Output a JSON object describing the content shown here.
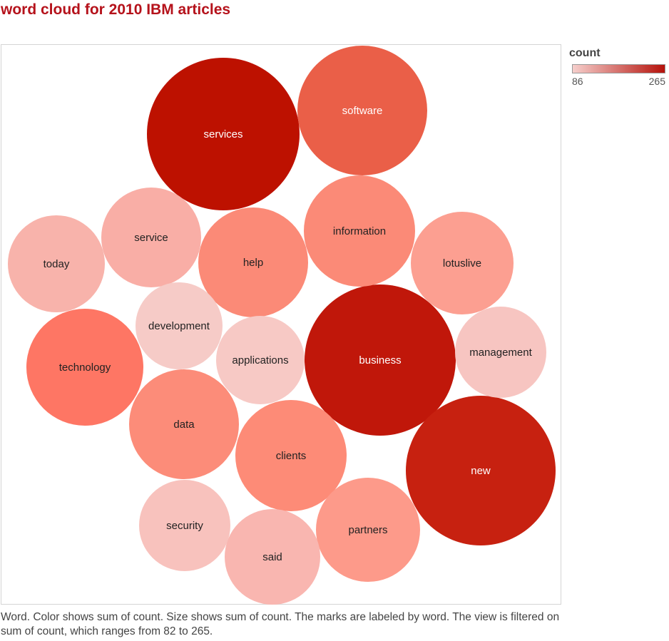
{
  "title": "word cloud for 2010 IBM articles",
  "legend": {
    "title": "count",
    "min_label": "86",
    "max_label": "265",
    "color_low": "#f6cfcc",
    "color_high": "#b5120b"
  },
  "caption": "Word.  Color shows sum of count.  Size shows sum of count.  The marks are labeled by word. The view is filtered on sum of count, which ranges from 82 to 265.",
  "chart_data": {
    "type": "bubble",
    "measure": "count",
    "words": [
      {
        "word": "services",
        "count": 265,
        "color": "#bd1100"
      },
      {
        "word": "software",
        "count": 190,
        "color": "#ea5f48"
      },
      {
        "word": "business",
        "count": 258,
        "color": "#c0170a"
      },
      {
        "word": "new",
        "count": 250,
        "color": "#c72110"
      },
      {
        "word": "information",
        "count": 140,
        "color": "#fb8a77"
      },
      {
        "word": "help",
        "count": 135,
        "color": "#fb8a77"
      },
      {
        "word": "technology",
        "count": 155,
        "color": "#fe7664"
      },
      {
        "word": "data",
        "count": 135,
        "color": "#fc8c79"
      },
      {
        "word": "clients",
        "count": 135,
        "color": "#fd8b77"
      },
      {
        "word": "lotuslive",
        "count": 120,
        "color": "#fc9f91"
      },
      {
        "word": "partners",
        "count": 122,
        "color": "#fd9a8a"
      },
      {
        "word": "service",
        "count": 110,
        "color": "#f9aea6"
      },
      {
        "word": "today",
        "count": 104,
        "color": "#f8b3ab"
      },
      {
        "word": "said",
        "count": 99,
        "color": "#f9b6b0"
      },
      {
        "word": "applications",
        "count": 88,
        "color": "#f7c9c5"
      },
      {
        "word": "management",
        "count": 90,
        "color": "#f7c5c1"
      },
      {
        "word": "development",
        "count": 86,
        "color": "#f6cbc7"
      },
      {
        "word": "security",
        "count": 91,
        "color": "#f8c2bd"
      }
    ]
  }
}
